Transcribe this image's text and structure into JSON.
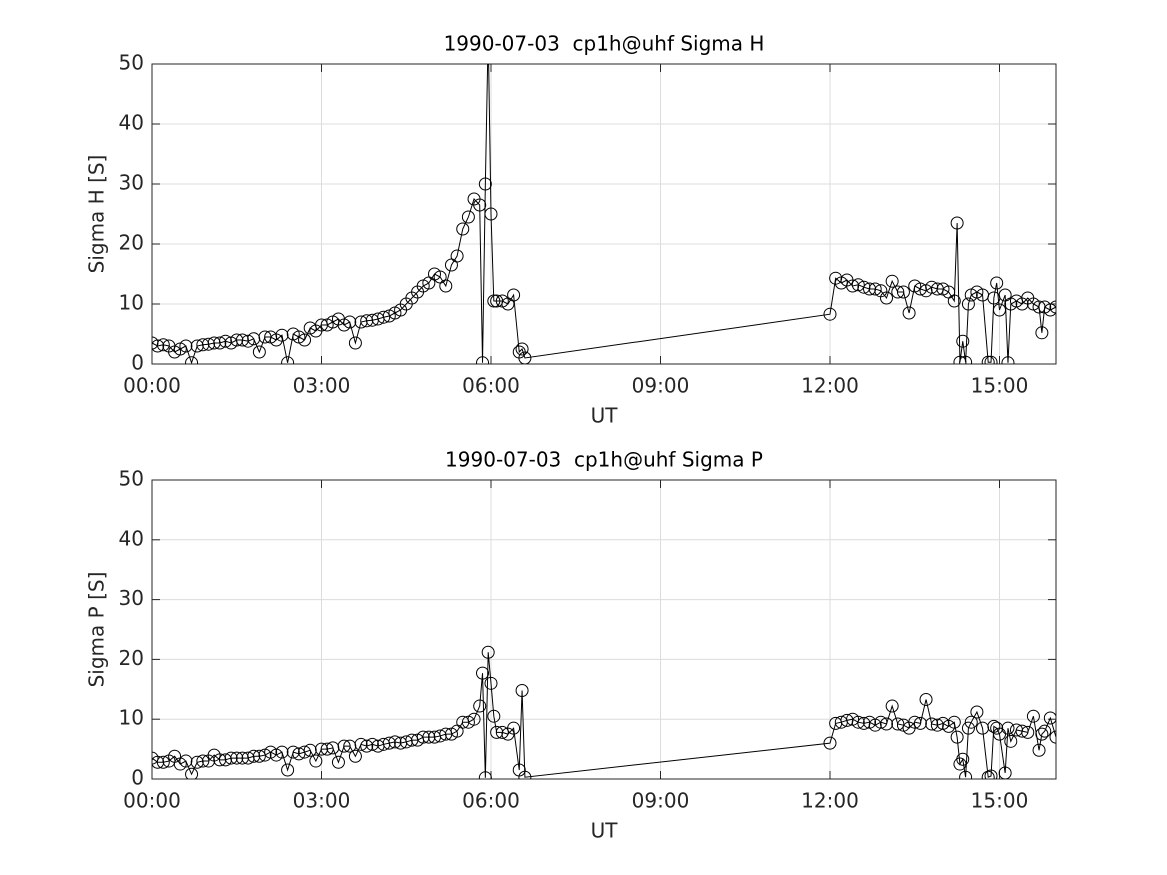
{
  "chart_data": [
    {
      "type": "line",
      "title": "1990-07-03  cp1h@uhf Sigma H",
      "xlabel": "UT",
      "ylabel": "Sigma H [S]",
      "xlim": [
        0,
        16
      ],
      "ylim": [
        0,
        50
      ],
      "xticks": [
        {
          "value": 0,
          "label": "00:00"
        },
        {
          "value": 3,
          "label": "03:00"
        },
        {
          "value": 6,
          "label": "06:00"
        },
        {
          "value": 9,
          "label": "09:00"
        },
        {
          "value": 12,
          "label": "12:00"
        },
        {
          "value": 15,
          "label": "15:00"
        }
      ],
      "yticks": [
        0,
        10,
        20,
        30,
        40,
        50
      ],
      "grid": true,
      "color": "#000000",
      "marker": "circle",
      "x": [
        0,
        0.1,
        0.2,
        0.3,
        0.4,
        0.5,
        0.6,
        0.7,
        0.8,
        0.9,
        1,
        1.1,
        1.2,
        1.3,
        1.4,
        1.5,
        1.6,
        1.7,
        1.8,
        1.9,
        2,
        2.1,
        2.2,
        2.3,
        2.4,
        2.5,
        2.6,
        2.7,
        2.8,
        2.9,
        3,
        3.1,
        3.2,
        3.3,
        3.4,
        3.5,
        3.6,
        3.7,
        3.8,
        3.9,
        4,
        4.1,
        4.2,
        4.3,
        4.4,
        4.5,
        4.6,
        4.7,
        4.8,
        4.9,
        5,
        5.1,
        5.2,
        5.3,
        5.4,
        5.5,
        5.6,
        5.7,
        5.8,
        5.85,
        5.9,
        5.95,
        6,
        6.05,
        6.1,
        6.2,
        6.3,
        6.4,
        6.5,
        6.55,
        6.6,
        12,
        12.1,
        12.2,
        12.3,
        12.4,
        12.5,
        12.6,
        12.7,
        12.8,
        12.9,
        13,
        13.1,
        13.2,
        13.3,
        13.4,
        13.5,
        13.6,
        13.7,
        13.8,
        13.9,
        14,
        14.1,
        14.2,
        14.25,
        14.3,
        14.35,
        14.4,
        14.45,
        14.5,
        14.6,
        14.7,
        14.8,
        14.85,
        14.9,
        14.95,
        15,
        15.1,
        15.15,
        15.2,
        15.3,
        15.4,
        15.5,
        15.6,
        15.7,
        15.75,
        15.8,
        15.9,
        16
      ],
      "values": [
        3.5,
        3.0,
        3.2,
        3.0,
        2.0,
        2.5,
        3.0,
        0.2,
        3.0,
        3.2,
        3.3,
        3.5,
        3.5,
        3.8,
        3.5,
        4.0,
        4.0,
        3.8,
        4.2,
        2.0,
        4.5,
        4.5,
        4.0,
        4.8,
        0.2,
        5.0,
        4.5,
        4.0,
        6.0,
        5.5,
        6.5,
        6.5,
        7.0,
        7.5,
        6.5,
        7.0,
        3.5,
        7.0,
        7.2,
        7.3,
        7.5,
        7.8,
        8.0,
        8.5,
        9.0,
        10.0,
        11.0,
        12.0,
        13.0,
        13.5,
        15.0,
        14.5,
        13.0,
        16.5,
        18.0,
        22.5,
        24.5,
        27.5,
        26.5,
        0.2,
        30,
        55,
        25,
        10.5,
        10.5,
        10.5,
        10,
        11.5,
        2,
        2.5,
        1.0,
        8.3,
        14.3,
        13.5,
        14,
        13,
        13.2,
        12.8,
        12.5,
        12.5,
        12.2,
        11,
        13.8,
        12,
        12,
        8.5,
        13,
        12.5,
        12.2,
        12.8,
        12.5,
        12.5,
        12.0,
        10.5,
        23.5,
        0.3,
        3.8,
        0.3,
        10,
        11.5,
        12,
        11.5,
        0.3,
        0.3,
        11,
        13.5,
        9,
        11.5,
        0.2,
        10,
        10.5,
        10,
        11,
        10,
        9.5,
        5.2,
        9.5,
        9,
        9.5
      ]
    },
    {
      "type": "line",
      "title": "1990-07-03  cp1h@uhf Sigma P",
      "xlabel": "UT",
      "ylabel": "Sigma P [S]",
      "xlim": [
        0,
        16
      ],
      "ylim": [
        0,
        50
      ],
      "xticks": [
        {
          "value": 0,
          "label": "00:00"
        },
        {
          "value": 3,
          "label": "03:00"
        },
        {
          "value": 6,
          "label": "06:00"
        },
        {
          "value": 9,
          "label": "09:00"
        },
        {
          "value": 12,
          "label": "12:00"
        },
        {
          "value": 15,
          "label": "15:00"
        }
      ],
      "yticks": [
        0,
        10,
        20,
        30,
        40,
        50
      ],
      "grid": true,
      "color": "#000000",
      "marker": "circle",
      "x": [
        0,
        0.1,
        0.2,
        0.3,
        0.4,
        0.5,
        0.6,
        0.7,
        0.8,
        0.9,
        1,
        1.1,
        1.2,
        1.3,
        1.4,
        1.5,
        1.6,
        1.7,
        1.8,
        1.9,
        2,
        2.1,
        2.2,
        2.3,
        2.4,
        2.5,
        2.6,
        2.7,
        2.8,
        2.9,
        3,
        3.1,
        3.2,
        3.3,
        3.4,
        3.5,
        3.6,
        3.7,
        3.8,
        3.9,
        4,
        4.1,
        4.2,
        4.3,
        4.4,
        4.5,
        4.6,
        4.7,
        4.8,
        4.9,
        5,
        5.1,
        5.2,
        5.3,
        5.4,
        5.5,
        5.6,
        5.7,
        5.8,
        5.85,
        5.9,
        5.95,
        6,
        6.05,
        6.1,
        6.2,
        6.3,
        6.4,
        6.5,
        6.55,
        6.6,
        12,
        12.1,
        12.2,
        12.3,
        12.4,
        12.5,
        12.6,
        12.7,
        12.8,
        12.9,
        13,
        13.1,
        13.2,
        13.3,
        13.4,
        13.5,
        13.6,
        13.7,
        13.8,
        13.9,
        14,
        14.1,
        14.2,
        14.25,
        14.3,
        14.35,
        14.4,
        14.45,
        14.5,
        14.6,
        14.7,
        14.8,
        14.85,
        14.9,
        14.95,
        15,
        15.1,
        15.15,
        15.2,
        15.3,
        15.4,
        15.5,
        15.6,
        15.7,
        15.75,
        15.8,
        15.9,
        16
      ],
      "values": [
        3.5,
        2.8,
        2.8,
        3.0,
        3.8,
        2.5,
        3.0,
        0.8,
        2.8,
        3.0,
        3.0,
        4.0,
        3.2,
        3.2,
        3.5,
        3.5,
        3.5,
        3.5,
        3.8,
        3.8,
        4.0,
        4.5,
        4.0,
        4.5,
        1.5,
        4.5,
        4.2,
        4.5,
        4.8,
        3.0,
        5.0,
        5.0,
        5.2,
        2.8,
        5.5,
        5.5,
        3.8,
        5.8,
        5.5,
        5.8,
        5.5,
        5.8,
        6.0,
        6.2,
        6.0,
        6.2,
        6.5,
        6.5,
        7.0,
        7.0,
        7.0,
        7.2,
        7.5,
        7.5,
        8.0,
        9.5,
        9.5,
        10,
        12.2,
        17.7,
        0.2,
        21.2,
        16,
        10.5,
        7.8,
        7.8,
        7.5,
        8.5,
        1.5,
        14.8,
        0.3,
        6.0,
        9.3,
        9.5,
        9.8,
        10,
        9.5,
        9.3,
        9.5,
        9,
        9.5,
        9.2,
        12.2,
        9.2,
        9,
        8.5,
        9.5,
        9.3,
        13.3,
        9.2,
        9,
        9.3,
        8.8,
        9.5,
        7,
        2.5,
        3.3,
        0.3,
        8.5,
        9.5,
        11.2,
        8.5,
        0.3,
        0.5,
        8.8,
        8.5,
        7.5,
        1,
        8.5,
        6.3,
        8.2,
        8,
        7.8,
        10.5,
        4.8,
        7.5,
        8,
        10.2,
        7.0
      ]
    }
  ]
}
